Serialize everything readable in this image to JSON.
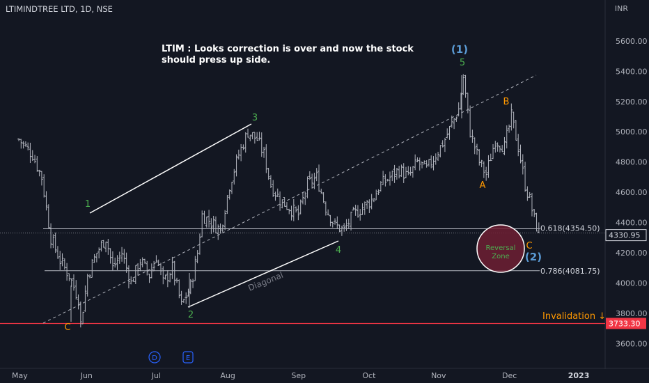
{
  "header": {
    "title": "LTIMINDTREE LTD, 1D, NSE",
    "currency": "INR"
  },
  "note": {
    "line1": "LTIM : Looks correction is over and now the stock",
    "line2": "should press up side."
  },
  "chart_data": {
    "type": "candlestick",
    "symbol": "LTIMINDTREE LTD",
    "interval": "1D",
    "exchange": "NSE",
    "currency": "INR",
    "ylim": [
      3500,
      5780
    ],
    "y_ticks": [
      3600,
      3800,
      4000,
      4200,
      4400,
      4600,
      4800,
      5000,
      5200,
      5400,
      5600
    ],
    "y_tick_labels": [
      "3600.00",
      "3800.00",
      "4000.00",
      "4200.00",
      "4400.00",
      "4600.00",
      "4800.00",
      "5000.00",
      "5200.00",
      "5400.00",
      "5600.00"
    ],
    "x_labels": [
      "May",
      "Jun",
      "Jul",
      "Aug",
      "Sep",
      "Oct",
      "Nov",
      "Dec",
      "2023"
    ],
    "x_label_days": [
      0,
      30,
      61,
      91,
      122,
      153,
      183,
      214,
      244
    ],
    "last_price": 4330.95,
    "last_price_label": "4330.95",
    "series_path": [
      [
        0,
        4950
      ],
      [
        6,
        4850
      ],
      [
        10,
        4700
      ],
      [
        14,
        4300
      ],
      [
        18,
        4150
      ],
      [
        22,
        4050
      ],
      [
        26,
        3900
      ],
      [
        27,
        3730
      ],
      [
        30,
        4050
      ],
      [
        34,
        4200
      ],
      [
        38,
        4300
      ],
      [
        41,
        4100
      ],
      [
        45,
        4200
      ],
      [
        49,
        4000
      ],
      [
        53,
        4150
      ],
      [
        57,
        4050
      ],
      [
        60,
        4180
      ],
      [
        63,
        4000
      ],
      [
        67,
        4100
      ],
      [
        71,
        3850
      ],
      [
        75,
        3980
      ],
      [
        78,
        4200
      ],
      [
        80,
        4450
      ],
      [
        84,
        4400
      ],
      [
        88,
        4350
      ],
      [
        92,
        4650
      ],
      [
        96,
        4850
      ],
      [
        100,
        5000
      ],
      [
        104,
        4950
      ],
      [
        107,
        4850
      ],
      [
        110,
        4650
      ],
      [
        114,
        4550
      ],
      [
        118,
        4500
      ],
      [
        122,
        4450
      ],
      [
        126,
        4650
      ],
      [
        130,
        4700
      ],
      [
        134,
        4500
      ],
      [
        138,
        4380
      ],
      [
        142,
        4350
      ],
      [
        146,
        4450
      ],
      [
        150,
        4500
      ],
      [
        154,
        4550
      ],
      [
        158,
        4650
      ],
      [
        162,
        4700
      ],
      [
        166,
        4750
      ],
      [
        170,
        4700
      ],
      [
        174,
        4800
      ],
      [
        178,
        4750
      ],
      [
        182,
        4850
      ],
      [
        186,
        4950
      ],
      [
        189,
        5050
      ],
      [
        192,
        5150
      ],
      [
        194,
        5360
      ],
      [
        197,
        5000
      ],
      [
        201,
        4800
      ],
      [
        204,
        4720
      ],
      [
        208,
        4950
      ],
      [
        212,
        4900
      ],
      [
        215,
        5100
      ],
      [
        218,
        4900
      ],
      [
        221,
        4650
      ],
      [
        223,
        4550
      ],
      [
        225,
        4420
      ],
      [
        227,
        4330
      ]
    ],
    "annotations": {
      "note": "LTIM : Looks correction is over and now the stock should press up side.",
      "waves": [
        {
          "label": "1",
          "day": 41
        },
        {
          "label": "2",
          "day": 76
        },
        {
          "label": "3",
          "day": 108
        },
        {
          "label": "4",
          "day": 149
        },
        {
          "label": "5",
          "day": 194
        },
        {
          "label": "(1)",
          "day": 194
        },
        {
          "label": "A",
          "day": 204
        },
        {
          "label": "B",
          "day": 215
        },
        {
          "label": "C",
          "day": 227
        },
        {
          "label": "(2)",
          "day": 229
        },
        {
          "label": "C",
          "day": 27
        }
      ],
      "fib_levels": [
        {
          "ratio": "0.618",
          "price": 4354.5,
          "label": "0.618(4354.50)"
        },
        {
          "ratio": "0.786",
          "price": 4081.75,
          "label": "0.786(4081.75)"
        }
      ],
      "invalidation": {
        "price": 3733.3,
        "label": "Invalidation ↓",
        "price_label": "3733.30"
      },
      "reversal_zone": "Reversal Zone",
      "diagonal_label": "Diagonal",
      "events": [
        "D",
        "E"
      ]
    }
  }
}
